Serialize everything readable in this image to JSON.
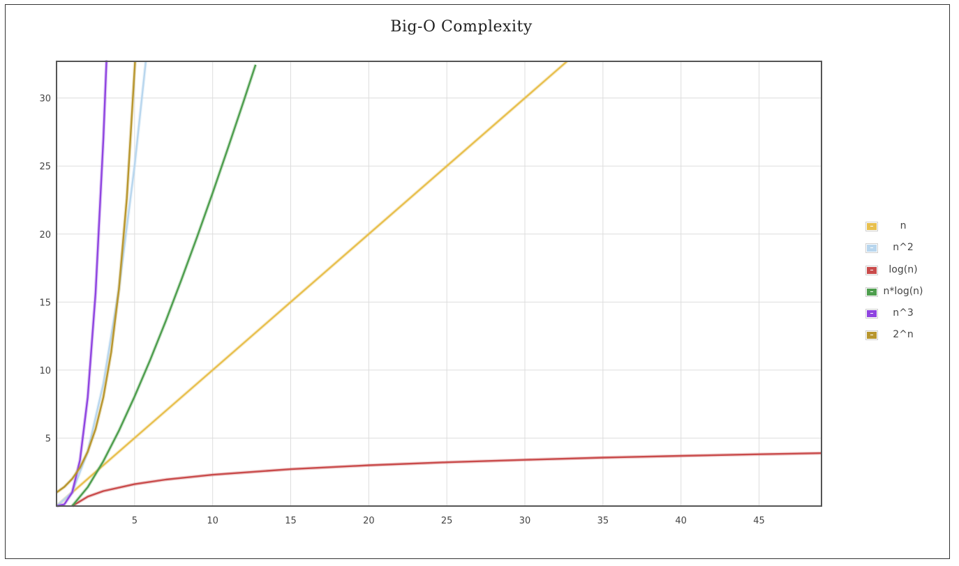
{
  "chart_data": {
    "type": "line",
    "title": "Big-O Complexity",
    "xlabel": "",
    "ylabel": "",
    "xlim": [
      0,
      49
    ],
    "ylim": [
      0,
      32.7
    ],
    "grid": true,
    "legend_position": "right",
    "x_ticks": [
      5,
      10,
      15,
      20,
      25,
      30,
      35,
      40,
      45
    ],
    "y_ticks": [
      5,
      10,
      15,
      20,
      25,
      30
    ],
    "x_tick_labels": [
      "5",
      "10",
      "15",
      "20",
      "25",
      "30",
      "35",
      "40",
      "45"
    ],
    "y_tick_labels": [
      "5",
      "10",
      "15",
      "20",
      "25",
      "30"
    ],
    "series": [
      {
        "name": "n",
        "color": "#e8c04f",
        "x": [
          0,
          5,
          10,
          15,
          20,
          25,
          30,
          32.7
        ],
        "y": [
          0,
          5,
          10,
          15,
          20,
          25,
          30,
          32.7
        ]
      },
      {
        "name": "n^2",
        "color": "#b8d6ee",
        "x": [
          0,
          1,
          2,
          3,
          4,
          5,
          5.72
        ],
        "y": [
          0,
          1,
          4,
          9,
          16,
          25,
          32.7
        ]
      },
      {
        "name": "log(n)",
        "color": "#c94b4b",
        "x": [
          1,
          2,
          3,
          5,
          7,
          10,
          15,
          20,
          25,
          30,
          35,
          40,
          45,
          49
        ],
        "y": [
          0,
          0.69,
          1.1,
          1.61,
          1.95,
          2.3,
          2.71,
          3.0,
          3.22,
          3.4,
          3.56,
          3.69,
          3.81,
          3.89
        ]
      },
      {
        "name": "n*log(n)",
        "color": "#4e9e4e",
        "x": [
          1,
          2,
          3,
          4,
          5,
          6,
          7,
          8,
          9,
          10,
          11,
          12,
          12.75
        ],
        "y": [
          0,
          1.39,
          3.3,
          5.55,
          8.05,
          10.75,
          13.62,
          16.64,
          19.78,
          23.03,
          26.38,
          29.82,
          32.45
        ]
      },
      {
        "name": "n^3",
        "color": "#8f44e0",
        "x": [
          0,
          0.5,
          1,
          1.5,
          2,
          2.5,
          3,
          3.2
        ],
        "y": [
          0,
          0.13,
          1,
          3.38,
          8,
          15.63,
          27,
          32.77
        ]
      },
      {
        "name": "2^n",
        "color": "#b8962e",
        "x": [
          0,
          0.5,
          1,
          1.5,
          2,
          2.5,
          3,
          3.5,
          4,
          4.5,
          5.03
        ],
        "y": [
          1,
          1.41,
          2,
          2.83,
          4,
          5.66,
          8,
          11.31,
          16,
          22.63,
          32.67
        ]
      }
    ]
  }
}
